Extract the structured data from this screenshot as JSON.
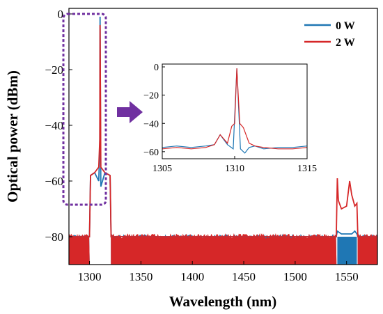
{
  "chart_data": [
    {
      "type": "line",
      "title": "",
      "xlabel": "Wavelength (nm)",
      "ylabel": "Optical power (dBm)",
      "xlim": [
        1280,
        1580
      ],
      "ylim": [
        -90,
        2
      ],
      "xticks": [
        "1300",
        "1350",
        "1400",
        "1450",
        "1500",
        "1550"
      ],
      "yticks": [
        "0",
        "-20",
        "-40",
        "-60",
        "-80"
      ],
      "xtick_values": [
        1300,
        1350,
        1400,
        1450,
        1500,
        1550
      ],
      "ytick_values": [
        0,
        -20,
        -40,
        -60,
        -80
      ],
      "legend_position": "top-right",
      "series": [
        {
          "name": "0 W",
          "color": "#1f77b4",
          "x": [
            1280,
            1300,
            1301,
            1305,
            1309,
            1310,
            1310.3,
            1311,
            1315,
            1320,
            1321,
            1540,
            1541,
            1545,
            1550,
            1555,
            1558,
            1560,
            1561,
            1580
          ],
          "y": [
            -80,
            -80,
            -58,
            -57,
            -60,
            -48,
            -1,
            -62,
            -57,
            -58,
            -80,
            -80,
            -78,
            -79,
            -79,
            -79,
            -78,
            -79,
            -80,
            -80
          ]
        },
        {
          "name": "2 W",
          "color": "#d62728",
          "x": [
            1280,
            1300,
            1301,
            1305,
            1309,
            1310,
            1310.3,
            1311,
            1315,
            1320,
            1321,
            1540,
            1541,
            1542,
            1545,
            1550,
            1553,
            1555,
            1558,
            1560,
            1561,
            1580
          ],
          "y": [
            -80,
            -80,
            -58,
            -57,
            -55,
            -45,
            -4,
            -55,
            -57,
            -58,
            -80,
            -80,
            -59,
            -67,
            -70,
            -69,
            -60,
            -65,
            -69,
            -68,
            -80,
            -80
          ]
        }
      ]
    },
    {
      "type": "line",
      "title": "",
      "xlabel": "",
      "ylabel": "",
      "xlim": [
        1305,
        1315
      ],
      "ylim": [
        -65,
        2
      ],
      "xticks": [
        "1305",
        "1310",
        "1315"
      ],
      "yticks": [
        "0",
        "-20",
        "-40",
        "-60"
      ],
      "xtick_values": [
        1305,
        1310,
        1315
      ],
      "ytick_values": [
        0,
        -20,
        -40,
        -60
      ],
      "series": [
        {
          "name": "0 W",
          "color": "#1f77b4",
          "x": [
            1305,
            1306,
            1307,
            1308,
            1308.6,
            1309,
            1309.5,
            1309.9,
            1310.15,
            1310.4,
            1310.7,
            1311,
            1311.4,
            1312,
            1313,
            1314,
            1315
          ],
          "y": [
            -57,
            -56,
            -57,
            -56,
            -55,
            -48,
            -55,
            -58,
            -1,
            -58,
            -61,
            -57,
            -56,
            -58,
            -57,
            -57,
            -56
          ]
        },
        {
          "name": "2 W",
          "color": "#d62728",
          "x": [
            1305,
            1306,
            1307,
            1308,
            1308.6,
            1309,
            1309.5,
            1309.8,
            1310.0,
            1310.15,
            1310.35,
            1310.6,
            1311,
            1311.4,
            1312,
            1313,
            1314,
            1315
          ],
          "y": [
            -58,
            -57,
            -58,
            -57,
            -55,
            -48,
            -54,
            -42,
            -40,
            -1,
            -40,
            -43,
            -54,
            -56,
            -57,
            -58,
            -58,
            -57
          ]
        }
      ]
    }
  ],
  "annotation": {
    "highlight_box_color": "#7030a0",
    "arrow_color": "#7030a0"
  }
}
